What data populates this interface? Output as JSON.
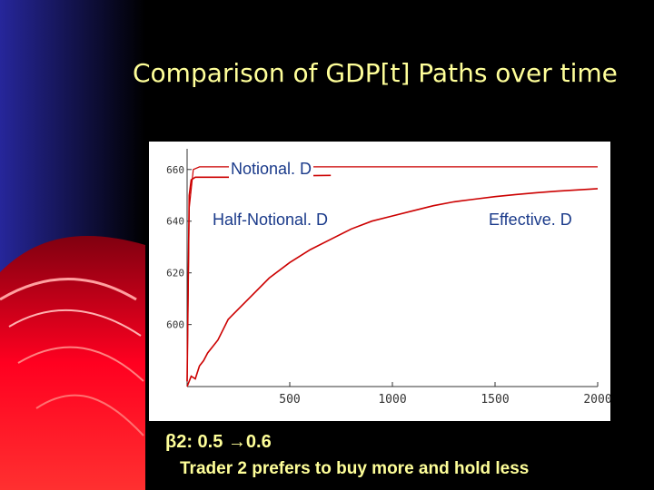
{
  "slide": {
    "title": "Comparison of GDP[t] Paths over time",
    "beta_text": "β2: 0.5 →0.6",
    "note_text": "Trader 2 prefers to buy more and hold less"
  },
  "colors": {
    "background": "#000000",
    "title": "#ffff99",
    "series": "#cc0000",
    "callout_text": "#1a3a8a",
    "decor_red": "#e8001c",
    "decor_blue": "#1a1a8c"
  },
  "chart_data": {
    "type": "line",
    "title": "",
    "xlabel": "",
    "ylabel": "",
    "xlim": [
      0,
      2000
    ],
    "ylim": [
      576,
      668
    ],
    "x_ticks": [
      500,
      1000,
      1500,
      2000
    ],
    "y_ticks": [
      600,
      620,
      640,
      660
    ],
    "x_tick_labels": [
      "500",
      "1000",
      "1500",
      "2000"
    ],
    "y_tick_labels": [
      "600",
      "620",
      "640",
      "660"
    ],
    "grid": false,
    "series": [
      {
        "name": "Notional. D",
        "x": [
          0,
          10,
          20,
          40,
          80,
          120,
          200,
          300,
          400,
          500,
          600,
          700
        ],
        "y": [
          578,
          650,
          656,
          657,
          657,
          657,
          657,
          657,
          657.2,
          657.4,
          657.6,
          657.7
        ]
      },
      {
        "name": "Half-Notional. D",
        "x": [
          0,
          10,
          30,
          60,
          100,
          200,
          300,
          400,
          500,
          600,
          700,
          800,
          900,
          1000,
          1100,
          1200,
          1300,
          1400,
          1500,
          1600,
          1700,
          1800,
          1900,
          2000
        ],
        "y": [
          578,
          645,
          660,
          661,
          661,
          661,
          661,
          661,
          661,
          661,
          661,
          661,
          661,
          661,
          661,
          661,
          661,
          661,
          661,
          661,
          661,
          661,
          661,
          661
        ]
      },
      {
        "name": "Effective. D",
        "x": [
          0,
          20,
          40,
          60,
          80,
          100,
          150,
          200,
          250,
          300,
          400,
          500,
          600,
          700,
          800,
          900,
          1000,
          1100,
          1200,
          1300,
          1400,
          1500,
          1600,
          1700,
          1800,
          1900,
          2000
        ],
        "y": [
          576,
          580,
          579,
          584,
          586,
          589,
          594,
          602,
          606,
          610,
          618,
          624,
          629,
          633,
          637,
          640,
          642,
          644,
          646,
          647.5,
          648.5,
          649.5,
          650.3,
          651,
          651.6,
          652.1,
          652.6
        ]
      }
    ],
    "annotations": [
      {
        "text": "Notional. D",
        "series": 0
      },
      {
        "text": "Half-Notional. D",
        "series": 1
      },
      {
        "text": "Effective. D",
        "series": 2
      }
    ]
  }
}
